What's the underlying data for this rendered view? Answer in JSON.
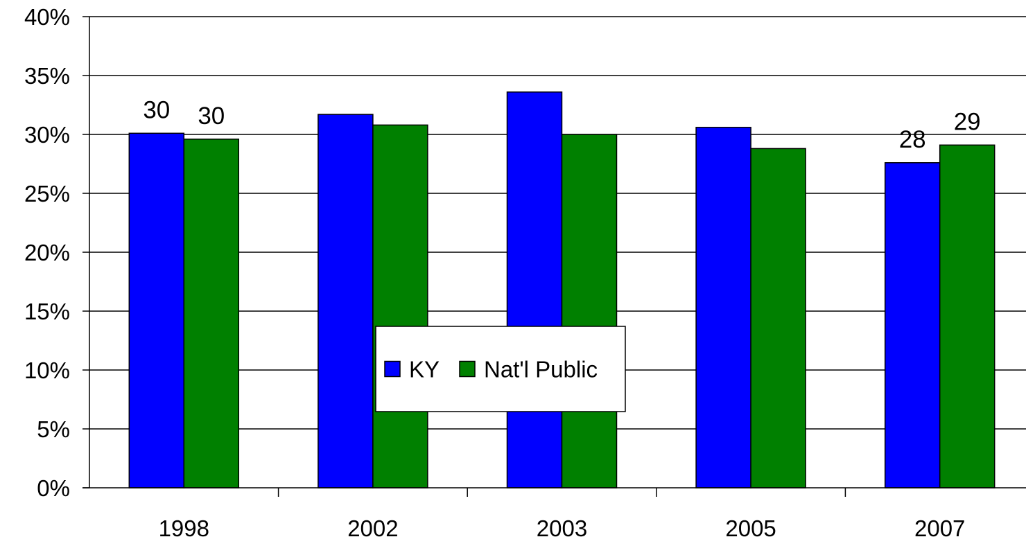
{
  "chart_data": {
    "type": "bar",
    "categories": [
      "1998",
      "2002",
      "2003",
      "2005",
      "2007"
    ],
    "series": [
      {
        "name": "KY",
        "values": [
          30.1,
          31.7,
          33.6,
          30.6,
          27.6
        ],
        "data_labels": [
          "30",
          "",
          "",
          "",
          "28"
        ]
      },
      {
        "name": "Nat'l Public",
        "values": [
          29.6,
          30.8,
          30.0,
          28.8,
          29.1
        ],
        "data_labels": [
          "30",
          "",
          "",
          "",
          "29"
        ]
      }
    ],
    "ylim": [
      0,
      40
    ],
    "yticks": [
      "0%",
      "5%",
      "10%",
      "15%",
      "20%",
      "25%",
      "30%",
      "35%",
      "40%"
    ],
    "grid": true,
    "legend_position": "center",
    "colors": {
      "KY": "#0000FF",
      "Nat'l Public": "#008000"
    }
  }
}
